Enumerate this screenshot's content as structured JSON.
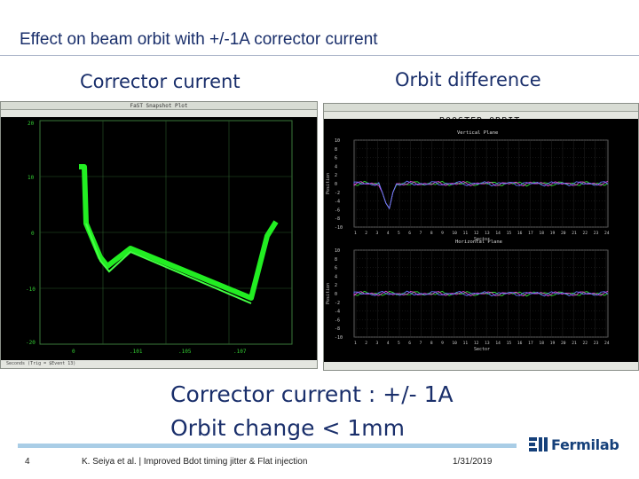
{
  "slide": {
    "title": "Effect on beam orbit with +/-1A corrector current",
    "left_heading": "Corrector current",
    "right_heading": "Orbit difference",
    "callout_line1": "Corrector current : +/- 1A",
    "callout_line2": "Orbit change < 1mm"
  },
  "left_panel": {
    "window_title": "FaST Snapshot Plot",
    "y_ticks": [
      "20",
      "10",
      "0",
      "-10",
      "-20"
    ],
    "x_ticks": [
      "0",
      ".101",
      ".105",
      ".107"
    ],
    "footer": "Seconds (Trig = $Event 13)"
  },
  "right_panel": {
    "window_title": "BOOSTER ORBIT",
    "upper_plane_label": "Vertical Plane",
    "lower_plane_label": "Horizontal Plane",
    "y_ticks": [
      "10",
      "8",
      "6",
      "4",
      "2",
      "0",
      "-2",
      "-4",
      "-6",
      "-8",
      "-10"
    ],
    "sector_ticks": [
      "1",
      "2",
      "3",
      "4",
      "5",
      "6",
      "7",
      "8",
      "9",
      "10",
      "11",
      "12",
      "13",
      "14",
      "15",
      "16",
      "17",
      "18",
      "19",
      "20",
      "21",
      "22",
      "23",
      "24"
    ],
    "x_label": "Sector",
    "y_label": "Position"
  },
  "footer": {
    "page_number": "4",
    "text": "K. Seiya et al. | Improved Bdot timing jitter & Flat injection",
    "date": "1/31/2019",
    "logo_text": "Fermilab"
  },
  "colors": {
    "title": "#1a2f6b",
    "plot_bg": "#000000",
    "corrector_trace": "#22ee22",
    "grid": "#3a7a3a",
    "accent_rule": "#a9cde6",
    "logo": "#15407a"
  }
}
